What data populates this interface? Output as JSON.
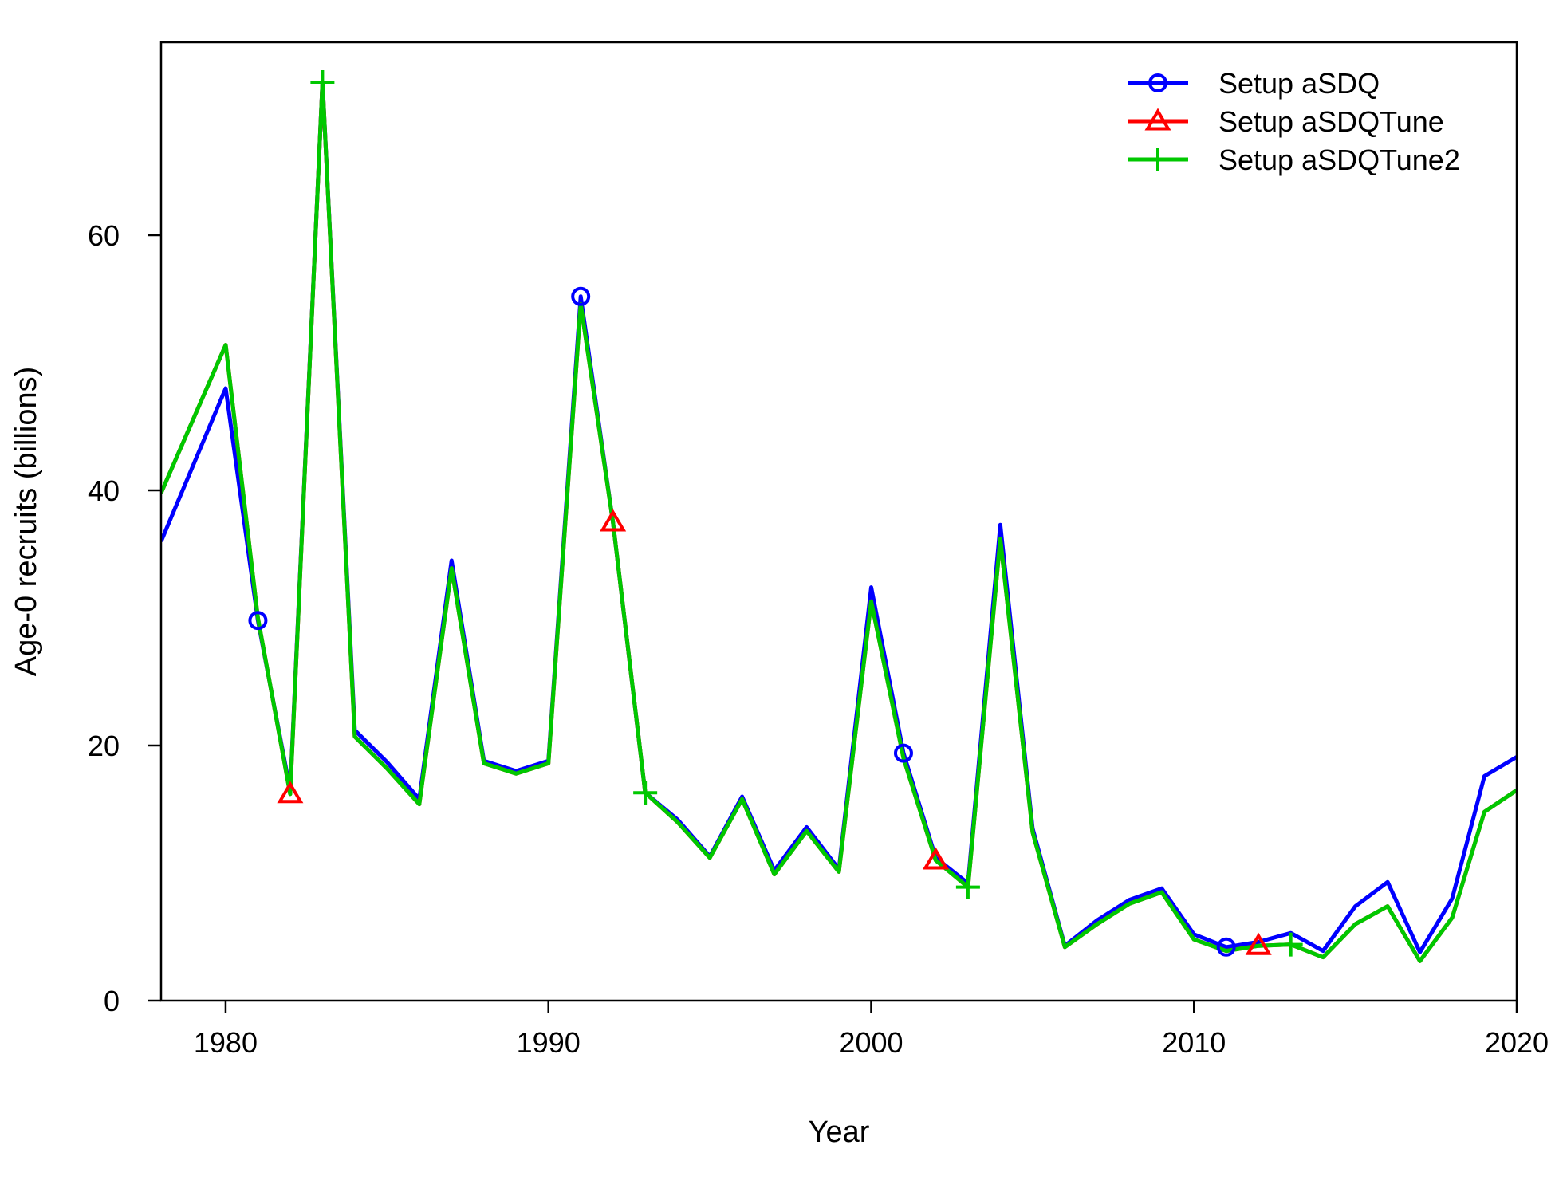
{
  "chart_data": {
    "type": "line",
    "title": "",
    "xlabel": "Year",
    "ylabel": "Age-0 recruits (billions)",
    "xlim": [
      1978,
      2020
    ],
    "ylim": [
      0,
      75
    ],
    "x_ticks": [
      "1980",
      "1990",
      "2000",
      "2010",
      "2020"
    ],
    "y_ticks": [
      "0",
      "20",
      "40",
      "60"
    ],
    "legend_position": "top-right",
    "x": [
      1978,
      1979,
      1980,
      1981,
      1982,
      1983,
      1984,
      1985,
      1986,
      1987,
      1988,
      1989,
      1990,
      1991,
      1992,
      1993,
      1994,
      1995,
      1996,
      1997,
      1998,
      1999,
      2000,
      2001,
      2002,
      2003,
      2004,
      2005,
      2006,
      2007,
      2008,
      2009,
      2010,
      2011,
      2012,
      2013,
      2014,
      2015,
      2016,
      2017,
      2018,
      2019,
      2020
    ],
    "series": [
      {
        "name": "Setup aSDQ",
        "color": "#0000ff",
        "marker": "circle",
        "marker_years": [
          1981,
          1991,
          2001,
          2011
        ],
        "values": [
          36.0,
          42.0,
          48.0,
          29.8,
          16.5,
          72.0,
          21.2,
          18.7,
          15.8,
          34.5,
          18.8,
          18.0,
          18.8,
          55.2,
          37.5,
          16.3,
          14.2,
          11.3,
          16.0,
          10.2,
          13.6,
          10.3,
          32.4,
          19.4,
          11.2,
          9.2,
          37.3,
          13.5,
          4.3,
          6.3,
          7.9,
          8.8,
          5.2,
          4.2,
          4.6,
          5.3,
          3.9,
          7.4,
          9.3,
          3.8,
          8.0,
          17.6,
          19.1
        ]
      },
      {
        "name": "Setup aSDQTune",
        "color": "#ff0000",
        "marker": "triangle",
        "marker_years": [
          1982,
          1992,
          2002,
          2012
        ],
        "values": [
          39.8,
          45.6,
          51.4,
          30.0,
          16.2,
          72.0,
          20.7,
          18.2,
          15.4,
          33.9,
          18.6,
          17.8,
          18.6,
          54.6,
          37.5,
          16.3,
          14.0,
          11.2,
          15.8,
          9.9,
          13.3,
          10.1,
          31.3,
          19.0,
          11.0,
          8.9,
          36.2,
          13.2,
          4.2,
          6.0,
          7.6,
          8.5,
          4.8,
          3.9,
          4.3,
          4.4,
          3.4,
          6.0,
          7.4,
          3.1,
          6.5,
          14.8,
          16.5
        ]
      },
      {
        "name": "Setup aSDQTune2",
        "color": "#00c800",
        "marker": "plus",
        "marker_years": [
          1983,
          1993,
          2003,
          2013
        ],
        "values": [
          39.8,
          45.6,
          51.4,
          30.0,
          16.2,
          72.0,
          20.7,
          18.2,
          15.4,
          33.9,
          18.6,
          17.8,
          18.6,
          54.6,
          37.5,
          16.3,
          14.0,
          11.2,
          15.8,
          9.9,
          13.3,
          10.1,
          31.3,
          19.0,
          11.0,
          8.9,
          36.2,
          13.2,
          4.2,
          6.0,
          7.6,
          8.5,
          4.8,
          3.9,
          4.3,
          4.4,
          3.4,
          6.0,
          7.4,
          3.1,
          6.5,
          14.8,
          16.5
        ]
      }
    ]
  }
}
